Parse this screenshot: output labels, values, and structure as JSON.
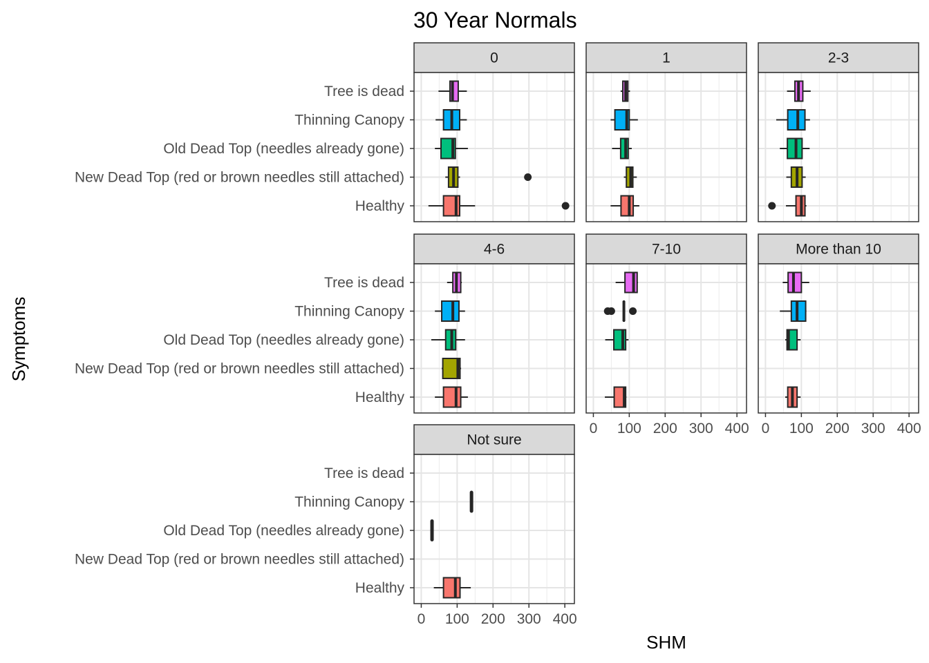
{
  "chart_data": {
    "type": "boxplot",
    "title": "30 Year Normals",
    "xlabel": "SHM",
    "ylabel": "Symptoms",
    "xlim": [
      0,
      420
    ],
    "x_ticks": [
      0,
      100,
      200,
      300,
      400
    ],
    "grid": true,
    "legend": "none",
    "categories": [
      "Tree is dead",
      "Thinning Canopy",
      "Old Dead Top (needles already gone)",
      "New Dead Top (red or brown needles still attached)",
      "Healthy"
    ],
    "category_colors": {
      "Tree is dead": "#E76BF3",
      "Thinning Canopy": "#00B0F6",
      "Old Dead Top (needles already gone)": "#00BF7D",
      "New Dead Top (red or brown needles still attached)": "#A3A500",
      "Healthy": "#F8766D"
    },
    "panels": [
      {
        "label": "0",
        "boxes": [
          {
            "category": "Tree is dead",
            "min": 48,
            "q1": 80,
            "median": 87,
            "q3": 103,
            "max": 127,
            "outliers": []
          },
          {
            "category": "Thinning Canopy",
            "min": 40,
            "q1": 62,
            "median": 85,
            "q3": 107,
            "max": 127,
            "outliers": []
          },
          {
            "category": "Old Dead Top (needles already gone)",
            "min": 38,
            "q1": 55,
            "median": 88,
            "q3": 95,
            "max": 130,
            "outliers": []
          },
          {
            "category": "New Dead Top (red or brown needles still attached)",
            "min": 67,
            "q1": 76,
            "median": 90,
            "q3": 102,
            "max": 108,
            "outliers": [
              297
            ]
          },
          {
            "category": "Healthy",
            "min": 20,
            "q1": 62,
            "median": 97,
            "q3": 107,
            "max": 150,
            "outliers": [
              402
            ]
          }
        ]
      },
      {
        "label": "1",
        "boxes": [
          {
            "category": "Tree is dead",
            "min": 76,
            "q1": 82,
            "median": 90,
            "q3": 96,
            "max": 102,
            "outliers": []
          },
          {
            "category": "Thinning Canopy",
            "min": 48,
            "q1": 60,
            "median": 93,
            "q3": 100,
            "max": 124,
            "outliers": []
          },
          {
            "category": "Old Dead Top (needles already gone)",
            "min": 52,
            "q1": 76,
            "median": 90,
            "q3": 97,
            "max": 107,
            "outliers": []
          },
          {
            "category": "New Dead Top (red or brown needles still attached)",
            "min": 85,
            "q1": 92,
            "median": 104,
            "q3": 110,
            "max": 121,
            "outliers": []
          },
          {
            "category": "Healthy",
            "min": 48,
            "q1": 77,
            "median": 100,
            "q3": 111,
            "max": 128,
            "outliers": []
          }
        ]
      },
      {
        "label": "2-3",
        "boxes": [
          {
            "category": "Tree is dead",
            "min": 60,
            "q1": 82,
            "median": 92,
            "q3": 104,
            "max": 126,
            "outliers": []
          },
          {
            "category": "Thinning Canopy",
            "min": 30,
            "q1": 62,
            "median": 90,
            "q3": 110,
            "max": 124,
            "outliers": []
          },
          {
            "category": "Old Dead Top (needles already gone)",
            "min": 40,
            "q1": 61,
            "median": 85,
            "q3": 102,
            "max": 123,
            "outliers": []
          },
          {
            "category": "New Dead Top (red or brown needles still attached)",
            "min": 58,
            "q1": 72,
            "median": 88,
            "q3": 102,
            "max": 112,
            "outliers": []
          },
          {
            "category": "Healthy",
            "min": 57,
            "q1": 85,
            "median": 100,
            "q3": 110,
            "max": 114,
            "outliers": [
              18
            ]
          }
        ]
      },
      {
        "label": "4-6",
        "boxes": [
          {
            "category": "Tree is dead",
            "min": 72,
            "q1": 88,
            "median": 98,
            "q3": 110,
            "max": 113,
            "outliers": []
          },
          {
            "category": "Thinning Canopy",
            "min": 38,
            "q1": 57,
            "median": 88,
            "q3": 105,
            "max": 122,
            "outliers": []
          },
          {
            "category": "Old Dead Top (needles already gone)",
            "min": 28,
            "q1": 68,
            "median": 85,
            "q3": 96,
            "max": 122,
            "outliers": []
          },
          {
            "category": "New Dead Top (red or brown needles still attached)",
            "min": 57,
            "q1": 60,
            "median": 102,
            "q3": 108,
            "max": 111,
            "outliers": []
          },
          {
            "category": "Healthy",
            "min": 38,
            "q1": 62,
            "median": 97,
            "q3": 110,
            "max": 130,
            "outliers": []
          }
        ]
      },
      {
        "label": "7-10",
        "boxes": [
          {
            "category": "Tree is dead",
            "min": 62,
            "q1": 88,
            "median": 112,
            "q3": 122,
            "max": 124,
            "outliers": []
          },
          {
            "category": "Thinning Canopy",
            "min": 82,
            "q1": 84,
            "median": 85,
            "q3": 86,
            "max": 88,
            "outliers": [
              40,
              50,
              110
            ]
          },
          {
            "category": "Old Dead Top (needles already gone)",
            "min": 33,
            "q1": 57,
            "median": 82,
            "q3": 90,
            "max": 98,
            "outliers": []
          },
          {
            "category": "New Dead Top (red or brown needles still attached)",
            "min": null,
            "q1": null,
            "median": null,
            "q3": null,
            "max": null,
            "outliers": []
          },
          {
            "category": "Healthy",
            "min": 32,
            "q1": 58,
            "median": 86,
            "q3": 90,
            "max": 92,
            "outliers": []
          }
        ]
      },
      {
        "label": "More than 10",
        "boxes": [
          {
            "category": "Tree is dead",
            "min": 48,
            "q1": 63,
            "median": 78,
            "q3": 100,
            "max": 122,
            "outliers": []
          },
          {
            "category": "Thinning Canopy",
            "min": 40,
            "q1": 72,
            "median": 88,
            "q3": 112,
            "max": 114,
            "outliers": []
          },
          {
            "category": "Old Dead Top (needles already gone)",
            "min": 55,
            "q1": 60,
            "median": 64,
            "q3": 88,
            "max": 98,
            "outliers": []
          },
          {
            "category": "New Dead Top (red or brown needles still attached)",
            "min": null,
            "q1": null,
            "median": null,
            "q3": null,
            "max": null,
            "outliers": []
          },
          {
            "category": "Healthy",
            "min": 55,
            "q1": 62,
            "median": 75,
            "q3": 88,
            "max": 98,
            "outliers": []
          }
        ]
      },
      {
        "label": "Not sure",
        "boxes": [
          {
            "category": "Tree is dead",
            "min": null,
            "q1": null,
            "median": null,
            "q3": null,
            "max": null,
            "outliers": []
          },
          {
            "category": "Thinning Canopy",
            "min": 140,
            "q1": 140,
            "median": 140,
            "q3": 140,
            "max": 140,
            "outliers": []
          },
          {
            "category": "Old Dead Top (needles already gone)",
            "min": 30,
            "q1": 30,
            "median": 30,
            "q3": 30,
            "max": 30,
            "outliers": []
          },
          {
            "category": "New Dead Top (red or brown needles still attached)",
            "min": null,
            "q1": null,
            "median": null,
            "q3": null,
            "max": null,
            "outliers": []
          },
          {
            "category": "Healthy",
            "min": 35,
            "q1": 62,
            "median": 95,
            "q3": 108,
            "max": 138,
            "outliers": []
          }
        ]
      }
    ]
  }
}
